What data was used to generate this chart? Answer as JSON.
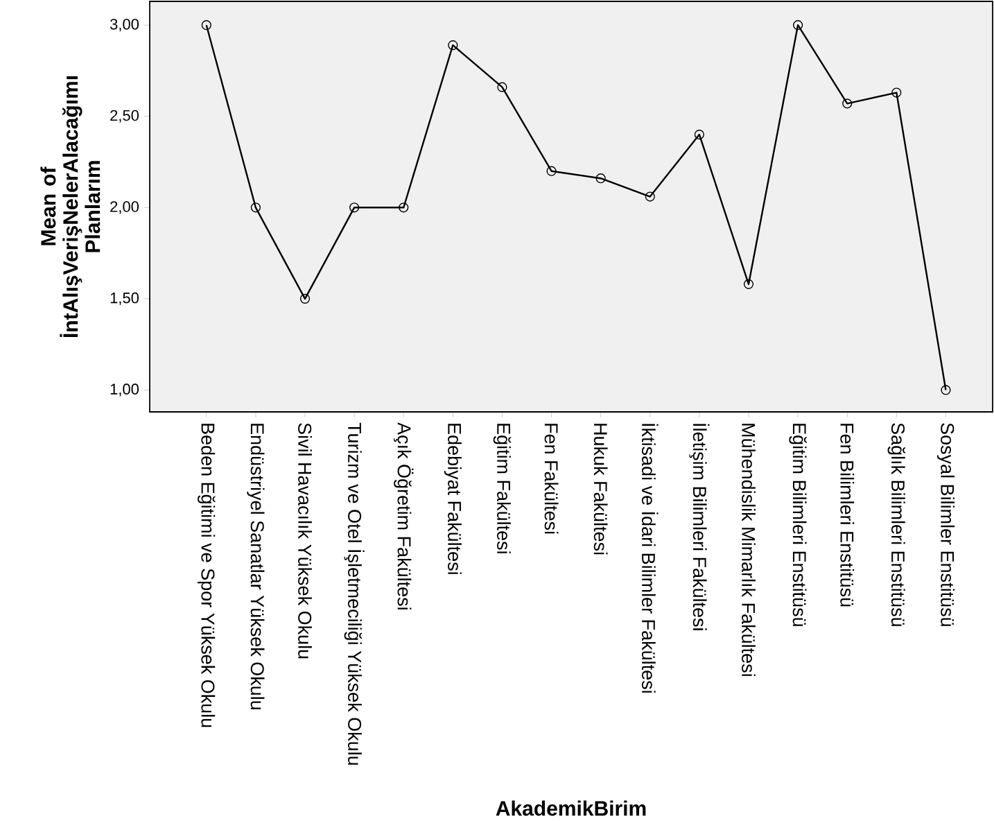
{
  "chart_data": {
    "type": "line",
    "xlabel": "AkademikBirim",
    "ylabel": "Mean of İntAlışVerişNelerAlacağımı Planlarım",
    "categories": [
      "Beden Eğitimi ve Spor Yüksek Okulu",
      "Endüstriyel Sanatlar Yüksek Okulu",
      "Sivil Havacılık Yüksek Okulu",
      "Turizm ve Otel İşletmeciliği Yüksek Okulu",
      "Açık Öğretim Fakültesi",
      "Edebiyat Fakültesi",
      "Eğitim Fakültesi",
      "Fen Fakültesi",
      "Hukuk Fakültesi",
      "İktisadi ve İdari Bilimler Fakültesi",
      "İletişim Bilimleri Fakültesi",
      "Mühendislik Mimarlık Fakültesi",
      "Eğitim Bilimleri Enstitüsü",
      "Fen Bilimleri Enstitüsü",
      "Sağlık Bilimleri Enstitüsü",
      "Sosyal Bilimler Enstitüsü"
    ],
    "series": [
      {
        "color": "#000000",
        "values": [
          3.0,
          2.0,
          1.5,
          2.0,
          2.0,
          2.89,
          2.66,
          2.2,
          2.16,
          2.06,
          2.4,
          1.58,
          3.0,
          2.57,
          2.63,
          1.0
        ]
      }
    ],
    "ylim": [
      0.88,
      3.13
    ],
    "yticks": [
      {
        "value": 1,
        "label": "1,00"
      },
      {
        "value": 1.5,
        "label": "1,50"
      },
      {
        "value": 2,
        "label": "2,00"
      },
      {
        "value": 2.5,
        "label": "2,50"
      },
      {
        "value": 3,
        "label": "3,00"
      }
    ],
    "marker": "circle",
    "line_style": "solid",
    "grid": false
  }
}
